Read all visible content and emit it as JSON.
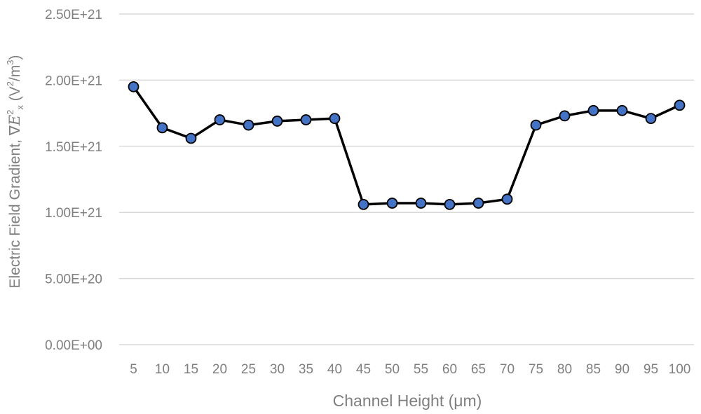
{
  "chart_data": {
    "type": "line",
    "title": "",
    "xlabel": "Channel Height (μm)",
    "ylabel": {
      "prefix": "Electric Field Gradient, ∇",
      "var": "E",
      "sup": "2",
      "sub": "x",
      "unit_open": " (V",
      "unit_sup1": "2",
      "unit_mid": "/m",
      "unit_sup2": "3",
      "unit_close": ")"
    },
    "x": [
      5,
      10,
      15,
      20,
      25,
      30,
      35,
      40,
      45,
      50,
      55,
      60,
      65,
      70,
      75,
      80,
      85,
      90,
      95,
      100
    ],
    "x_tick_labels": [
      "5",
      "10",
      "15",
      "20",
      "25",
      "30",
      "35",
      "40",
      "45",
      "50",
      "55",
      "60",
      "65",
      "70",
      "75",
      "80",
      "85",
      "90",
      "95",
      "100"
    ],
    "series": [
      {
        "values": [
          1.95e+21,
          1.64e+21,
          1.56e+21,
          1.7e+21,
          1.66e+21,
          1.69e+21,
          1.7e+21,
          1.71e+21,
          1.06e+21,
          1.07e+21,
          1.07e+21,
          1.06e+21,
          1.07e+21,
          1.1e+21,
          1.66e+21,
          1.73e+21,
          1.77e+21,
          1.77e+21,
          1.71e+21,
          1.81e+21
        ],
        "line_color": "#000000",
        "marker_fill": "#4472c4",
        "marker_edge": "#000000"
      }
    ],
    "ylim": [
      0,
      2.5e+21
    ],
    "y_ticks": [
      0,
      5e+20,
      1e+21,
      1.5e+21,
      2e+21,
      2.5e+21
    ],
    "y_tick_labels": [
      "0.00E+00",
      "5.00E+20",
      "1.00E+21",
      "1.50E+21",
      "2.00E+21",
      "2.50E+21"
    ],
    "grid": true,
    "grid_color": "#d9d9d9",
    "legend": "none"
  }
}
